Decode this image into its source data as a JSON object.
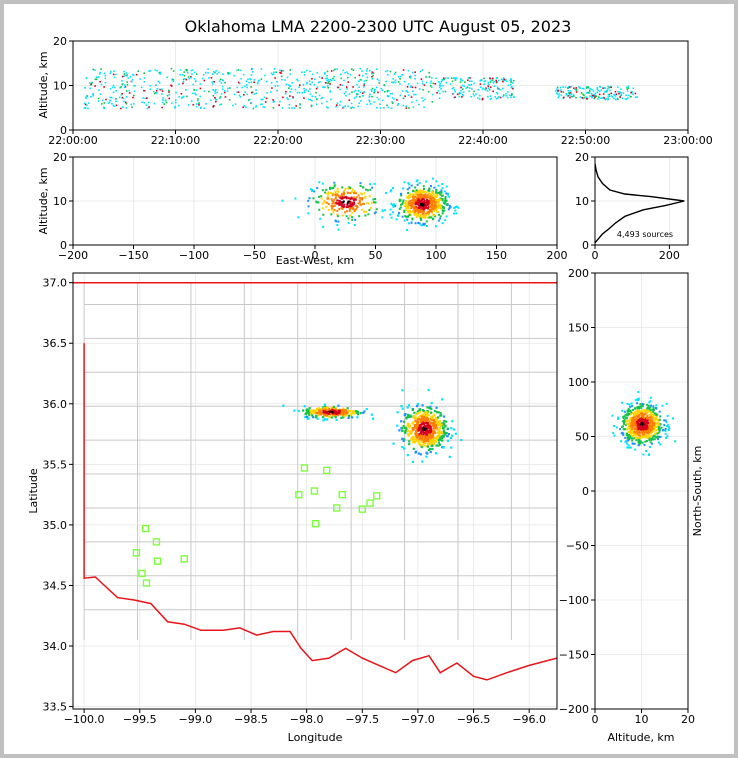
{
  "title": "Oklahoma LMA 2200-2300 UTC August 05, 2023",
  "colors": {
    "state_border": "#e8141a",
    "county": "#c8c8c8",
    "stations": "#7dff3c",
    "low": "#00e5ff",
    "mid": "#12c24a",
    "high": "#d4001e",
    "peak": "#000000"
  },
  "chart_data": [
    {
      "type": "scatter",
      "name": "time-altitude",
      "xlabel": "",
      "ylabel": "Altitude, km",
      "xlim": [
        "22:00:00",
        "23:00:00"
      ],
      "ylim": [
        0,
        20
      ],
      "x_ticks": [
        "22:00:00",
        "22:10:00",
        "22:20:00",
        "22:30:00",
        "22:40:00",
        "22:50:00",
        "23:00:00"
      ],
      "y_ticks": [
        "0",
        "10",
        "20"
      ],
      "activity_clusters": [
        {
          "t_min": 1,
          "t_max": 35,
          "alt_low": 5,
          "alt_high": 14
        },
        {
          "t_min": 35,
          "t_max": 43,
          "alt_low": 7,
          "alt_high": 12
        },
        {
          "t_min": 47,
          "t_max": 55,
          "alt_low": 7,
          "alt_high": 10
        }
      ]
    },
    {
      "type": "heatmap",
      "name": "east-west-altitude",
      "xlabel": "East-West, km",
      "ylabel": "Altitude, km",
      "xlim": [
        -200,
        200
      ],
      "ylim": [
        0,
        20
      ],
      "x_ticks": [
        "−200",
        "−150",
        "−100",
        "−50",
        "0",
        "50",
        "100",
        "150",
        "200"
      ],
      "y_ticks": [
        "0",
        "10",
        "20"
      ],
      "clusters": [
        {
          "x": 25,
          "alt": 10,
          "sx": 14,
          "salt": 2,
          "n": 260
        },
        {
          "x": 88,
          "alt": 9.5,
          "sx": 10,
          "salt": 2,
          "n": 560
        }
      ]
    },
    {
      "type": "line",
      "name": "altitude-histogram",
      "xlabel": "",
      "ylabel": "",
      "xlim": [
        0,
        250
      ],
      "ylim": [
        0,
        20
      ],
      "x_ticks": [
        "0",
        "200"
      ],
      "y_ticks": [
        "0",
        "10",
        "20"
      ],
      "annotation": "4,493 sources",
      "profile": [
        [
          0,
          0.5
        ],
        [
          10,
          1.5
        ],
        [
          20,
          2.5
        ],
        [
          35,
          3.5
        ],
        [
          55,
          5
        ],
        [
          80,
          6.5
        ],
        [
          130,
          8
        ],
        [
          190,
          9
        ],
        [
          240,
          10
        ],
        [
          150,
          11
        ],
        [
          80,
          11.6
        ],
        [
          40,
          12.5
        ],
        [
          20,
          14
        ],
        [
          8,
          15.5
        ],
        [
          3,
          17
        ],
        [
          0,
          18.5
        ]
      ]
    },
    {
      "type": "scatter",
      "name": "plan-view",
      "xlabel": "Longitude",
      "ylabel": "Latitude",
      "xlim": [
        -100.1,
        -95.75
      ],
      "ylim": [
        33.48,
        37.08
      ],
      "x_ticks": [
        "−100.0",
        "−99.5",
        "−99.0",
        "−98.5",
        "−98.0",
        "−97.5",
        "−97.0",
        "−96.5",
        "−96.0"
      ],
      "y_ticks": [
        "33.5",
        "34.0",
        "34.5",
        "35.0",
        "35.5",
        "36.0",
        "36.5",
        "37.0"
      ],
      "stations": [
        [
          -99.45,
          34.97
        ],
        [
          -99.35,
          34.86
        ],
        [
          -99.53,
          34.77
        ],
        [
          -99.34,
          34.7
        ],
        [
          -99.48,
          34.6
        ],
        [
          -99.44,
          34.52
        ],
        [
          -99.1,
          34.72
        ],
        [
          -98.02,
          35.47
        ],
        [
          -97.82,
          35.45
        ],
        [
          -98.07,
          35.25
        ],
        [
          -97.93,
          35.28
        ],
        [
          -97.68,
          35.25
        ],
        [
          -97.37,
          35.24
        ],
        [
          -97.43,
          35.18
        ],
        [
          -97.5,
          35.13
        ],
        [
          -97.73,
          35.14
        ],
        [
          -97.92,
          35.01
        ]
      ],
      "source_clusters": [
        {
          "lon": -97.78,
          "lat": 35.94,
          "slon": 0.13,
          "slat": 0.025,
          "n": 240
        },
        {
          "lon": -96.95,
          "lat": 35.8,
          "slon": 0.1,
          "slat": 0.09,
          "n": 520
        }
      ],
      "state_border": [
        [
          -100.0,
          36.5
        ],
        [
          -100.0,
          34.56
        ],
        [
          -99.9,
          34.57
        ],
        [
          -99.7,
          34.4
        ],
        [
          -99.55,
          34.38
        ],
        [
          -99.4,
          34.35
        ],
        [
          -99.25,
          34.2
        ],
        [
          -99.1,
          34.18
        ],
        [
          -98.95,
          34.13
        ],
        [
          -98.75,
          34.13
        ],
        [
          -98.6,
          34.15
        ],
        [
          -98.45,
          34.09
        ],
        [
          -98.3,
          34.12
        ],
        [
          -98.15,
          34.12
        ],
        [
          -98.05,
          33.98
        ],
        [
          -97.95,
          33.88
        ],
        [
          -97.8,
          33.9
        ],
        [
          -97.65,
          33.98
        ],
        [
          -97.5,
          33.9
        ],
        [
          -97.35,
          33.84
        ],
        [
          -97.2,
          33.78
        ],
        [
          -97.05,
          33.88
        ],
        [
          -96.9,
          33.92
        ],
        [
          -96.8,
          33.78
        ],
        [
          -96.65,
          33.86
        ],
        [
          -96.5,
          33.75
        ],
        [
          -96.38,
          33.72
        ],
        [
          -96.2,
          33.78
        ],
        [
          -96.0,
          33.84
        ],
        [
          -95.75,
          33.9
        ]
      ],
      "north_border": [
        [
          -100.1,
          37.0
        ],
        [
          -95.75,
          37.0
        ]
      ]
    },
    {
      "type": "heatmap",
      "name": "altitude-north-south",
      "xlabel": "Altitude, km",
      "ylabel": "North-South, km",
      "xlim": [
        0,
        20
      ],
      "ylim": [
        -200,
        200
      ],
      "x_ticks": [
        "0",
        "10",
        "20"
      ],
      "y_ticks": [
        "−200",
        "−150",
        "−100",
        "−50",
        "0",
        "50",
        "100",
        "150",
        "200"
      ],
      "clusters": [
        {
          "alt": 10,
          "y": 62,
          "salt": 2.2,
          "sy": 9,
          "n": 700
        }
      ]
    }
  ]
}
